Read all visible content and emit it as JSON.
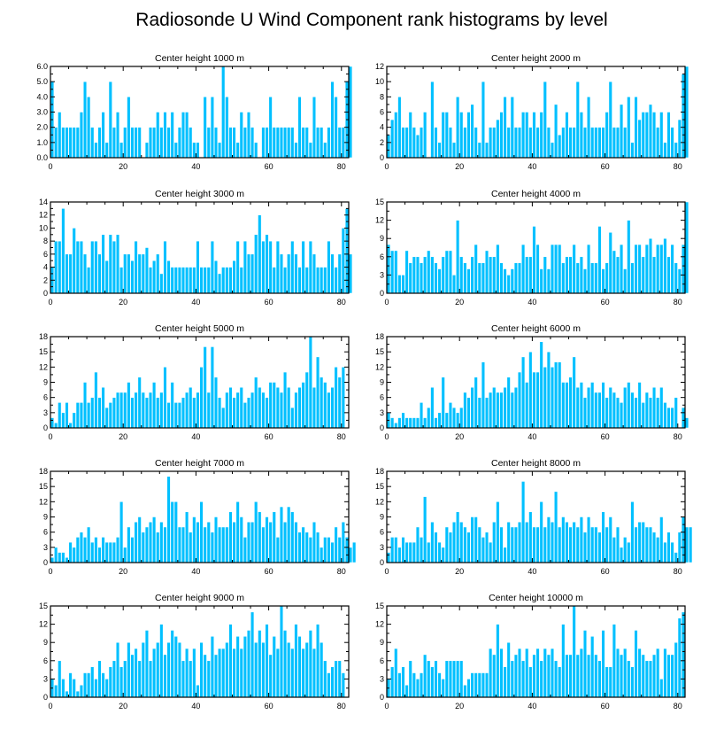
{
  "title": "Radiosonde U Wind Component rank histograms by level",
  "colors": {
    "bar": "#00c0ff",
    "bar_edge": "#ffffff",
    "axis": "#000000"
  },
  "chart_data": [
    {
      "type": "bar",
      "title": "Center height 1000 m",
      "xlabel": "",
      "ylabel": "",
      "xlim": [
        0,
        82
      ],
      "xticks": [
        0,
        20,
        40,
        60,
        80
      ],
      "ylim": [
        0,
        6
      ],
      "yticks": [
        0,
        1,
        2,
        3,
        4,
        5,
        6
      ],
      "ytick_labels": [
        "0.0",
        "1.0",
        "2.0",
        "3.0",
        "4.0",
        "5.0",
        "6.0"
      ],
      "values": [
        5,
        2,
        3,
        2,
        2,
        2,
        2,
        2,
        3,
        5,
        4,
        2,
        1,
        2,
        3,
        1,
        5,
        2,
        3,
        1,
        2,
        4,
        2,
        2,
        2,
        0,
        1,
        2,
        2,
        3,
        2,
        3,
        2,
        3,
        1,
        2,
        3,
        3,
        2,
        1,
        1,
        0,
        4,
        2,
        4,
        2,
        1,
        6,
        4,
        2,
        2,
        1,
        3,
        2,
        3,
        2,
        1,
        0,
        2,
        2,
        4,
        2,
        2,
        2,
        2,
        2,
        2,
        1,
        4,
        2,
        2,
        1,
        4,
        2,
        2,
        1,
        2,
        5,
        4,
        2,
        2,
        5,
        6
      ]
    },
    {
      "type": "bar",
      "title": "Center height 2000 m",
      "xlabel": "",
      "ylabel": "",
      "xlim": [
        0,
        82
      ],
      "xticks": [
        0,
        20,
        40,
        60,
        80
      ],
      "ylim": [
        0,
        12
      ],
      "yticks": [
        0,
        2,
        4,
        6,
        8,
        10,
        12
      ],
      "ytick_labels": [
        "0",
        "2",
        "4",
        "6",
        "8",
        "10",
        "12"
      ],
      "values": [
        3,
        5,
        6,
        8,
        4,
        4,
        6,
        4,
        3,
        4,
        6,
        0,
        10,
        4,
        2,
        6,
        6,
        4,
        2,
        8,
        6,
        4,
        6,
        7,
        4,
        2,
        10,
        2,
        4,
        4,
        5,
        6,
        8,
        4,
        8,
        4,
        4,
        6,
        6,
        4,
        6,
        4,
        6,
        10,
        4,
        2,
        7,
        3,
        4,
        6,
        4,
        4,
        10,
        6,
        4,
        8,
        4,
        4,
        4,
        4,
        6,
        10,
        4,
        4,
        7,
        4,
        8,
        2,
        8,
        5,
        6,
        6,
        7,
        6,
        4,
        6,
        2,
        6,
        4,
        2,
        5,
        11,
        12
      ]
    },
    {
      "type": "bar",
      "title": "Center height 3000 m",
      "xlabel": "",
      "ylabel": "",
      "xlim": [
        0,
        82
      ],
      "xticks": [
        0,
        20,
        40,
        60,
        80
      ],
      "ylim": [
        0,
        14
      ],
      "yticks": [
        0,
        2,
        4,
        6,
        8,
        10,
        12,
        14
      ],
      "ytick_labels": [
        "0",
        "2",
        "4",
        "6",
        "8",
        "10",
        "12",
        "14"
      ],
      "values": [
        4,
        8,
        8,
        13,
        6,
        6,
        10,
        8,
        8,
        6,
        4,
        8,
        8,
        6,
        9,
        5,
        9,
        8,
        9,
        4,
        6,
        6,
        5,
        8,
        6,
        6,
        7,
        4,
        5,
        6,
        3,
        8,
        5,
        4,
        4,
        4,
        4,
        4,
        4,
        4,
        8,
        4,
        4,
        4,
        8,
        5,
        3,
        4,
        4,
        4,
        5,
        8,
        4,
        8,
        6,
        6,
        9,
        12,
        8,
        9,
        8,
        4,
        8,
        6,
        4,
        6,
        8,
        6,
        4,
        8,
        4,
        8,
        6,
        4,
        4,
        4,
        8,
        6,
        4,
        6,
        10,
        13,
        6
      ]
    },
    {
      "type": "bar",
      "title": "Center height 4000 m",
      "xlabel": "",
      "ylabel": "",
      "xlim": [
        0,
        82
      ],
      "xticks": [
        0,
        20,
        40,
        60,
        80
      ],
      "ylim": [
        0,
        15
      ],
      "yticks": [
        0,
        3,
        6,
        9,
        12,
        15
      ],
      "ytick_labels": [
        "0",
        "3",
        "6",
        "9",
        "12",
        "15"
      ],
      "values": [
        8,
        7,
        7,
        3,
        3,
        7,
        5,
        6,
        6,
        5,
        6,
        7,
        6,
        5,
        4,
        6,
        7,
        7,
        3,
        12,
        6,
        5,
        4,
        6,
        8,
        5,
        5,
        7,
        6,
        6,
        8,
        5,
        4,
        3,
        4,
        5,
        5,
        8,
        6,
        6,
        11,
        8,
        4,
        6,
        4,
        8,
        8,
        8,
        5,
        6,
        6,
        8,
        5,
        6,
        4,
        8,
        5,
        5,
        11,
        4,
        5,
        10,
        7,
        6,
        8,
        4,
        12,
        5,
        8,
        8,
        6,
        8,
        9,
        6,
        8,
        8,
        9,
        6,
        8,
        5,
        4,
        8,
        15
      ]
    },
    {
      "type": "bar",
      "title": "Center height 5000 m",
      "xlabel": "",
      "ylabel": "",
      "xlim": [
        0,
        82
      ],
      "xticks": [
        0,
        20,
        40,
        60,
        80
      ],
      "ylim": [
        0,
        18
      ],
      "yticks": [
        0,
        3,
        6,
        9,
        12,
        15,
        18
      ],
      "ytick_labels": [
        "0",
        "3",
        "6",
        "9",
        "12",
        "15",
        "18"
      ],
      "values": [
        2,
        1,
        5,
        3,
        5,
        1,
        3,
        5,
        5,
        9,
        5,
        6,
        11,
        6,
        8,
        4,
        5,
        6,
        7,
        7,
        7,
        9,
        6,
        7,
        10,
        7,
        6,
        7,
        9,
        6,
        7,
        12,
        5,
        9,
        5,
        5,
        6,
        7,
        8,
        6,
        7,
        12,
        16,
        7,
        16,
        10,
        6,
        4,
        7,
        8,
        6,
        7,
        8,
        5,
        6,
        7,
        10,
        8,
        7,
        6,
        9,
        9,
        8,
        7,
        11,
        8,
        4,
        7,
        8,
        9,
        11,
        18,
        8,
        14,
        10,
        9,
        7,
        8,
        12,
        10,
        12
      ]
    },
    {
      "type": "bar",
      "title": "Center height 6000 m",
      "xlabel": "",
      "ylabel": "",
      "xlim": [
        0,
        82
      ],
      "xticks": [
        0,
        20,
        40,
        60,
        80
      ],
      "ylim": [
        0,
        18
      ],
      "yticks": [
        0,
        3,
        6,
        9,
        12,
        15,
        18
      ],
      "ytick_labels": [
        "0",
        "3",
        "6",
        "9",
        "12",
        "15",
        "18"
      ],
      "values": [
        3,
        2,
        1,
        2,
        3,
        2,
        2,
        2,
        2,
        5,
        2,
        4,
        8,
        2,
        3,
        10,
        3,
        5,
        4,
        3,
        4,
        7,
        6,
        8,
        10,
        6,
        13,
        6,
        7,
        8,
        7,
        7,
        8,
        10,
        7,
        8,
        11,
        14,
        9,
        15,
        11,
        11,
        17,
        12,
        15,
        12,
        13,
        13,
        9,
        9,
        10,
        14,
        8,
        9,
        6,
        8,
        9,
        7,
        7,
        9,
        6,
        8,
        7,
        6,
        5,
        8,
        9,
        7,
        6,
        9,
        5,
        7,
        6,
        8,
        6,
        8,
        5,
        4,
        4,
        6,
        0,
        4,
        2
      ]
    },
    {
      "type": "bar",
      "title": "Center height 7000 m",
      "xlabel": "",
      "ylabel": "",
      "xlim": [
        0,
        82
      ],
      "xticks": [
        0,
        20,
        40,
        60,
        80
      ],
      "ylim": [
        0,
        18
      ],
      "yticks": [
        0,
        3,
        6,
        9,
        12,
        15,
        18
      ],
      "ytick_labels": [
        "0",
        "3",
        "6",
        "9",
        "12",
        "15",
        "18"
      ],
      "values": [
        1,
        3,
        2,
        2,
        1,
        4,
        3,
        5,
        6,
        5,
        7,
        4,
        5,
        3,
        5,
        4,
        4,
        4,
        5,
        12,
        3,
        7,
        5,
        8,
        9,
        6,
        7,
        8,
        9,
        6,
        8,
        7,
        17,
        12,
        12,
        7,
        7,
        10,
        6,
        9,
        8,
        12,
        7,
        8,
        6,
        9,
        7,
        7,
        7,
        10,
        8,
        12,
        9,
        5,
        8,
        8,
        12,
        10,
        7,
        9,
        8,
        10,
        5,
        11,
        8,
        11,
        10,
        8,
        6,
        7,
        6,
        5,
        8,
        6,
        3,
        5,
        5,
        4,
        7,
        5,
        8,
        5,
        3,
        4
      ]
    },
    {
      "type": "bar",
      "title": "Center height 8000 m",
      "xlabel": "",
      "ylabel": "",
      "xlim": [
        0,
        82
      ],
      "xticks": [
        0,
        20,
        40,
        60,
        80
      ],
      "ylim": [
        0,
        18
      ],
      "yticks": [
        0,
        3,
        6,
        9,
        12,
        15,
        18
      ],
      "ytick_labels": [
        "0",
        "3",
        "6",
        "9",
        "12",
        "15",
        "18"
      ],
      "values": [
        2,
        5,
        5,
        3,
        5,
        4,
        4,
        4,
        7,
        5,
        13,
        4,
        8,
        6,
        4,
        3,
        7,
        6,
        8,
        10,
        8,
        7,
        6,
        9,
        9,
        7,
        5,
        6,
        4,
        8,
        12,
        7,
        3,
        8,
        7,
        7,
        8,
        16,
        8,
        10,
        7,
        7,
        12,
        7,
        9,
        8,
        14,
        7,
        9,
        8,
        7,
        8,
        7,
        9,
        6,
        9,
        7,
        7,
        6,
        10,
        7,
        9,
        5,
        7,
        3,
        5,
        4,
        12,
        7,
        8,
        8,
        7,
        7,
        6,
        5,
        9,
        4,
        6,
        4,
        2,
        6,
        9,
        7,
        7
      ]
    },
    {
      "type": "bar",
      "title": "Center height 9000 m",
      "xlabel": "",
      "ylabel": "",
      "xlim": [
        0,
        82
      ],
      "xticks": [
        0,
        20,
        40,
        60,
        80
      ],
      "ylim": [
        0,
        15
      ],
      "yticks": [
        0,
        3,
        6,
        9,
        12,
        15
      ],
      "ytick_labels": [
        "0",
        "3",
        "6",
        "9",
        "12",
        "15"
      ],
      "values": [
        3,
        2,
        6,
        3,
        1,
        4,
        3,
        1,
        2,
        4,
        4,
        5,
        3,
        6,
        4,
        3,
        5,
        6,
        9,
        5,
        6,
        9,
        7,
        8,
        6,
        9,
        11,
        6,
        8,
        9,
        12,
        7,
        9,
        11,
        10,
        9,
        6,
        8,
        6,
        8,
        2,
        9,
        7,
        6,
        10,
        7,
        8,
        8,
        9,
        12,
        8,
        10,
        8,
        10,
        11,
        14,
        9,
        11,
        9,
        12,
        7,
        10,
        8,
        15,
        11,
        9,
        8,
        12,
        10,
        8,
        9,
        11,
        8,
        12,
        9,
        6,
        4,
        5,
        6,
        6,
        4
      ]
    },
    {
      "type": "bar",
      "title": "Center height 10000 m",
      "xlabel": "",
      "ylabel": "",
      "xlim": [
        0,
        82
      ],
      "xticks": [
        0,
        20,
        40,
        60,
        80
      ],
      "ylim": [
        0,
        15
      ],
      "yticks": [
        0,
        3,
        6,
        9,
        12,
        15
      ],
      "ytick_labels": [
        "0",
        "3",
        "6",
        "9",
        "12",
        "15"
      ],
      "values": [
        3,
        5,
        8,
        4,
        5,
        2,
        6,
        4,
        3,
        4,
        7,
        6,
        5,
        6,
        4,
        3,
        6,
        6,
        6,
        6,
        6,
        2,
        3,
        4,
        4,
        4,
        4,
        4,
        8,
        7,
        12,
        8,
        5,
        9,
        6,
        7,
        8,
        6,
        8,
        5,
        7,
        8,
        6,
        8,
        7,
        8,
        6,
        5,
        12,
        7,
        7,
        15,
        7,
        8,
        11,
        7,
        10,
        7,
        6,
        11,
        5,
        5,
        12,
        8,
        7,
        8,
        6,
        5,
        11,
        8,
        7,
        6,
        6,
        7,
        8,
        3,
        8,
        7,
        7,
        9,
        13,
        14
      ]
    }
  ]
}
